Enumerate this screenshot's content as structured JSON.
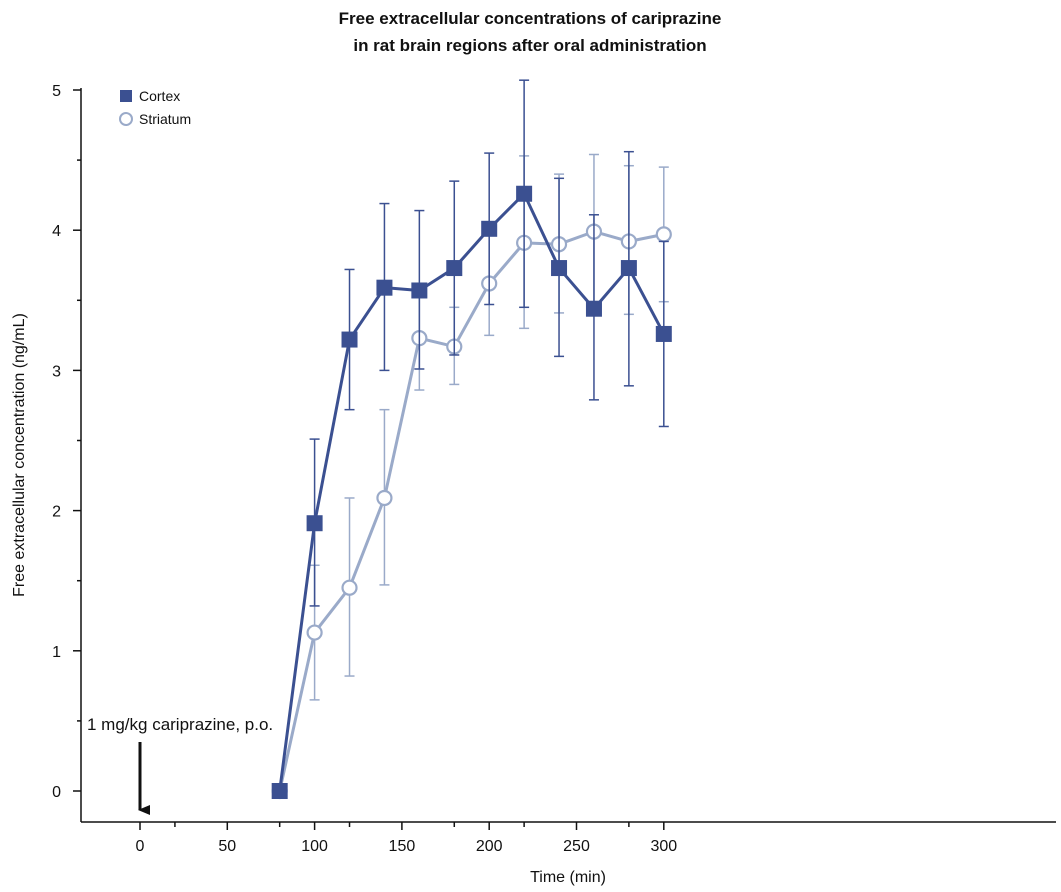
{
  "chart_data": {
    "type": "line",
    "title": [
      "Free extracellular concentrations of cariprazine",
      "in rat brain regions after oral administration"
    ],
    "xlabel": "Time (min)",
    "ylabel": "Free extracellular concentration (ng/mL)",
    "xlim": [
      -33,
      335
    ],
    "ylim": [
      -0.22,
      5.05
    ],
    "x_ticks": [
      0,
      50,
      100,
      150,
      200,
      250,
      300
    ],
    "x_minor_ticks": [
      20,
      80,
      120,
      180,
      220,
      280
    ],
    "y_ticks": [
      0,
      1,
      2,
      3,
      4,
      5
    ],
    "y_minor_ticks": [
      0.5,
      1.5,
      2.5,
      3.5,
      4.5
    ],
    "grid": false,
    "legend_position": "top-left",
    "annotation": "1 mg/kg cariprazine, p.o.",
    "annotation_x": 0,
    "series": [
      {
        "name": "Cortex",
        "marker": "filled-square",
        "color": "#3b5091",
        "x": [
          80,
          100,
          120,
          140,
          160,
          180,
          200,
          220,
          240,
          260,
          280,
          300
        ],
        "y": [
          0,
          1.91,
          3.22,
          3.59,
          3.57,
          3.73,
          4.01,
          4.26,
          3.73,
          3.44,
          3.73,
          3.26
        ],
        "err_low": [
          null,
          1.32,
          2.72,
          3.0,
          3.01,
          3.11,
          3.47,
          3.45,
          3.1,
          2.79,
          2.89,
          2.6
        ],
        "err_high": [
          null,
          2.51,
          3.72,
          4.19,
          4.14,
          4.35,
          4.55,
          5.07,
          4.37,
          4.11,
          4.56,
          3.92
        ]
      },
      {
        "name": "Striatum",
        "marker": "open-circle",
        "color": "#9aaac9",
        "x": [
          80,
          100,
          120,
          140,
          160,
          180,
          200,
          220,
          240,
          260,
          280,
          300
        ],
        "y": [
          0,
          1.13,
          1.45,
          2.09,
          3.23,
          3.17,
          3.62,
          3.91,
          3.9,
          3.99,
          3.92,
          3.97
        ],
        "err_low": [
          null,
          0.65,
          0.82,
          1.47,
          2.86,
          2.9,
          3.25,
          3.3,
          3.41,
          3.4,
          3.4,
          3.49
        ],
        "err_high": [
          null,
          1.61,
          2.09,
          2.72,
          3.59,
          3.45,
          4.0,
          4.53,
          4.4,
          4.54,
          4.46,
          4.45
        ]
      }
    ]
  }
}
